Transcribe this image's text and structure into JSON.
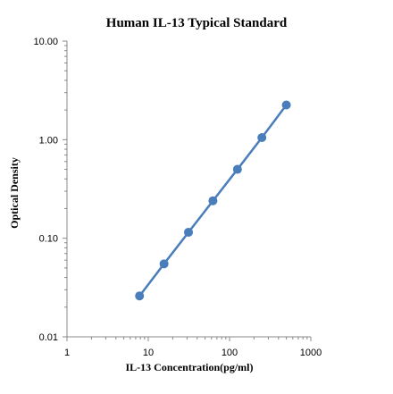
{
  "chart_data": {
    "type": "scatter",
    "title": "Human IL-13 Typical Standard",
    "xlabel": "IL-13 Concentration(pg/ml)",
    "ylabel": "Optical Density",
    "xscale": "log",
    "yscale": "log",
    "xlim": [
      1,
      1000
    ],
    "ylim": [
      0.01,
      10
    ],
    "x_tick_labels": [
      "1",
      "10",
      "100",
      "1000"
    ],
    "x_tick_values": [
      1,
      10,
      100,
      1000
    ],
    "y_tick_labels": [
      "0.01",
      "0.10",
      "1.00",
      "10.00"
    ],
    "y_tick_values": [
      0.01,
      0.1,
      1,
      10
    ],
    "grid": false,
    "series": [
      {
        "color": "#4a7ebb",
        "line": true,
        "x": [
          7.81,
          15.63,
          31.25,
          62.5,
          125,
          250,
          500
        ],
        "y": [
          0.026,
          0.055,
          0.115,
          0.24,
          0.5,
          1.05,
          2.25
        ]
      }
    ]
  }
}
